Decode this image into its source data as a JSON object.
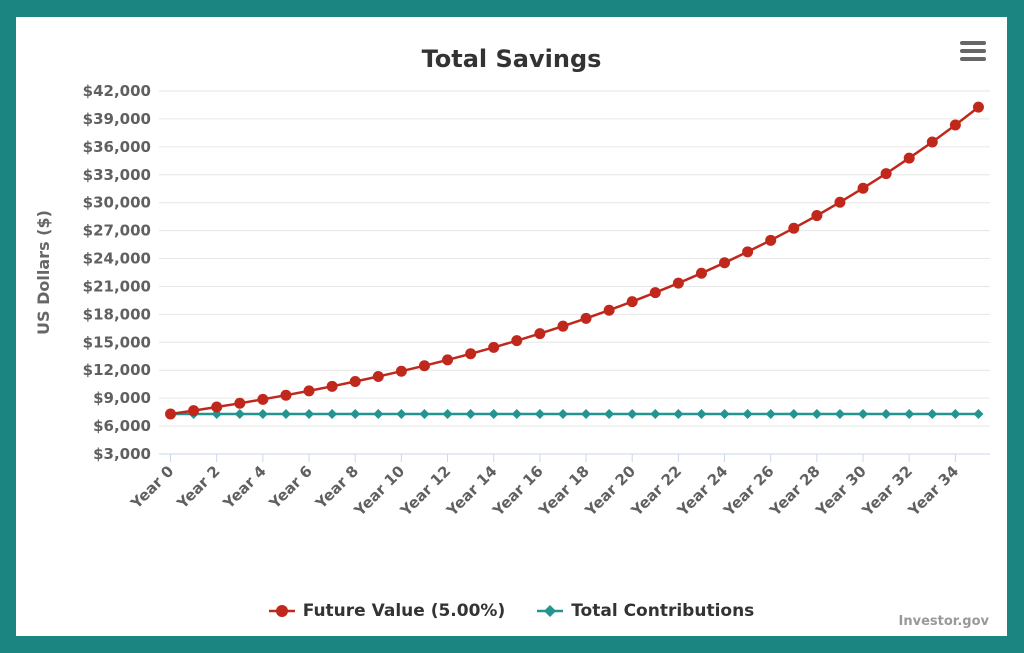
{
  "chart_data": {
    "type": "line",
    "title": "Total Savings",
    "ylabel": "US Dollars ($)",
    "xlabel": "",
    "ylim": [
      3000,
      42000
    ],
    "yticks": [
      "$3,000",
      "$6,000",
      "$9,000",
      "$12,000",
      "$15,000",
      "$18,000",
      "$21,000",
      "$24,000",
      "$27,000",
      "$30,000",
      "$33,000",
      "$36,000",
      "$39,000",
      "$42,000"
    ],
    "ytick_values": [
      3000,
      6000,
      9000,
      12000,
      15000,
      18000,
      21000,
      24000,
      27000,
      30000,
      33000,
      36000,
      39000,
      42000
    ],
    "categories": [
      "Year 0",
      "Year 1",
      "Year 2",
      "Year 3",
      "Year 4",
      "Year 5",
      "Year 6",
      "Year 7",
      "Year 8",
      "Year 9",
      "Year 10",
      "Year 11",
      "Year 12",
      "Year 13",
      "Year 14",
      "Year 15",
      "Year 16",
      "Year 17",
      "Year 18",
      "Year 19",
      "Year 20",
      "Year 21",
      "Year 22",
      "Year 23",
      "Year 24",
      "Year 25",
      "Year 26",
      "Year 27",
      "Year 28",
      "Year 29",
      "Year 30",
      "Year 31",
      "Year 32",
      "Year 33",
      "Year 34",
      "Year 35"
    ],
    "x_tick_labels": [
      "Year 0",
      "Year 2",
      "Year 4",
      "Year 6",
      "Year 8",
      "Year 10",
      "Year 12",
      "Year 14",
      "Year 16",
      "Year 18",
      "Year 20",
      "Year 22",
      "Year 24",
      "Year 26",
      "Year 28",
      "Year 30",
      "Year 32",
      "Year 34"
    ],
    "series": [
      {
        "name": "Future Value (5.00%)",
        "color": "#c0281c",
        "marker": "circle",
        "values": [
          7300,
          7665,
          8048,
          8451,
          8873,
          9317,
          9783,
          10272,
          10786,
          11325,
          11891,
          12486,
          13110,
          13766,
          14454,
          15177,
          15936,
          16732,
          17569,
          18448,
          19370,
          20338,
          21355,
          22423,
          23544,
          24722,
          25958,
          27256,
          28618,
          30049,
          31552,
          33129,
          34786,
          36525,
          38351,
          40269
        ]
      },
      {
        "name": "Total Contributions",
        "color": "#23948f",
        "marker": "diamond",
        "values": [
          7300,
          7300,
          7300,
          7300,
          7300,
          7300,
          7300,
          7300,
          7300,
          7300,
          7300,
          7300,
          7300,
          7300,
          7300,
          7300,
          7300,
          7300,
          7300,
          7300,
          7300,
          7300,
          7300,
          7300,
          7300,
          7300,
          7300,
          7300,
          7300,
          7300,
          7300,
          7300,
          7300,
          7300,
          7300,
          7300
        ]
      }
    ],
    "grid": true,
    "legend_position": "bottom"
  },
  "credit": "Investor.gov",
  "menu": {
    "icon": "hamburger-menu-icon"
  }
}
